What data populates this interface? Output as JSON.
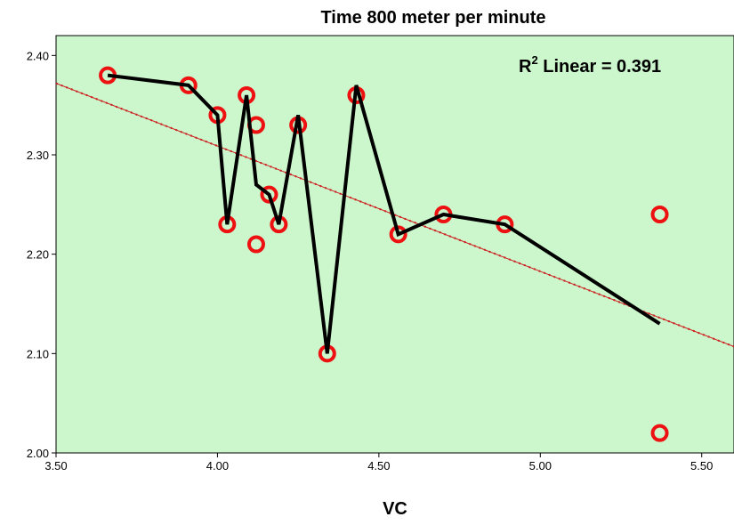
{
  "chart_data": {
    "type": "scatter",
    "title": "Time 800 meter per minute",
    "xlabel": "VC",
    "ylabel": "",
    "xlim": [
      3.5,
      5.6
    ],
    "ylim": [
      2.0,
      2.42
    ],
    "xticks": [
      3.5,
      4.0,
      4.5,
      5.0,
      5.5
    ],
    "xtick_labels": [
      "3.50",
      "4.00",
      "4.50",
      "5.00",
      "5.50"
    ],
    "yticks": [
      2.0,
      2.1,
      2.2,
      2.3,
      2.4
    ],
    "ytick_labels": [
      "2.00",
      "2.10",
      "2.20",
      "2.30",
      "2.40"
    ],
    "grid": false,
    "background_color": "#ccf7cc",
    "marker_color": "#ee1111",
    "line_color": "#000000",
    "fit_line_color": "#cc2222",
    "annotation": {
      "prefix": "R",
      "superscript": "2",
      "text": " Linear = 0.391"
    },
    "points": [
      {
        "x": 3.66,
        "y": 2.38
      },
      {
        "x": 3.91,
        "y": 2.37
      },
      {
        "x": 4.0,
        "y": 2.34
      },
      {
        "x": 4.03,
        "y": 2.23
      },
      {
        "x": 4.09,
        "y": 2.36
      },
      {
        "x": 4.12,
        "y": 2.33
      },
      {
        "x": 4.12,
        "y": 2.21
      },
      {
        "x": 4.16,
        "y": 2.26
      },
      {
        "x": 4.19,
        "y": 2.23
      },
      {
        "x": 4.25,
        "y": 2.33
      },
      {
        "x": 4.34,
        "y": 2.1
      },
      {
        "x": 4.43,
        "y": 2.36
      },
      {
        "x": 4.56,
        "y": 2.22
      },
      {
        "x": 4.7,
        "y": 2.24
      },
      {
        "x": 4.89,
        "y": 2.23
      },
      {
        "x": 5.37,
        "y": 2.24
      },
      {
        "x": 5.37,
        "y": 2.02
      }
    ],
    "connecting_line": [
      {
        "x": 3.66,
        "y": 2.38
      },
      {
        "x": 3.91,
        "y": 2.37
      },
      {
        "x": 4.0,
        "y": 2.34
      },
      {
        "x": 4.03,
        "y": 2.23
      },
      {
        "x": 4.09,
        "y": 2.36
      },
      {
        "x": 4.12,
        "y": 2.27
      },
      {
        "x": 4.16,
        "y": 2.26
      },
      {
        "x": 4.19,
        "y": 2.23
      },
      {
        "x": 4.25,
        "y": 2.34
      },
      {
        "x": 4.34,
        "y": 2.1
      },
      {
        "x": 4.43,
        "y": 2.37
      },
      {
        "x": 4.56,
        "y": 2.22
      },
      {
        "x": 4.7,
        "y": 2.24
      },
      {
        "x": 4.89,
        "y": 2.23
      },
      {
        "x": 5.37,
        "y": 2.13
      }
    ],
    "fit_line": {
      "x": [
        3.5,
        5.6
      ],
      "y": [
        2.372,
        2.107
      ]
    }
  }
}
